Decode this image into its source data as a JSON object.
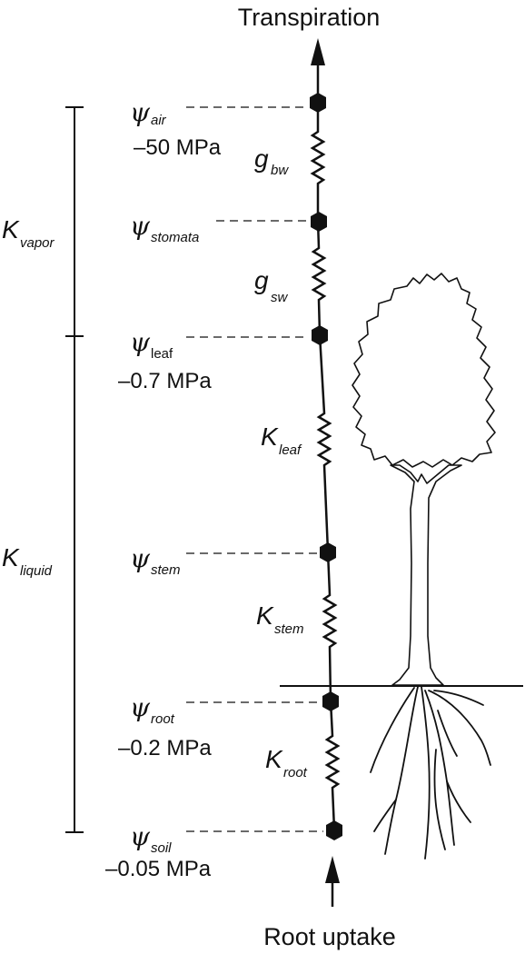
{
  "title_top": "Transpiration",
  "title_bottom": "Root uptake",
  "psi_symbol": "ψ",
  "nodes": {
    "air": {
      "sub": "air",
      "value": "–50 MPa"
    },
    "stomata": {
      "sub": "stomata",
      "value": ""
    },
    "leaf": {
      "sub": "leaf",
      "value": "–0.7 MPa"
    },
    "stem": {
      "sub": "stem",
      "value": ""
    },
    "root": {
      "sub": "root",
      "value": "–0.2 MPa"
    },
    "soil": {
      "sub": "soil",
      "value": "–0.05 MPa"
    }
  },
  "resistors": {
    "bw": {
      "symbol": "g",
      "sub": "bw"
    },
    "sw": {
      "symbol": "g",
      "sub": "sw"
    },
    "leaf": {
      "symbol": "K",
      "sub": "leaf"
    },
    "stem": {
      "symbol": "K",
      "sub": "stem"
    },
    "root": {
      "symbol": "K",
      "sub": "root"
    }
  },
  "brackets": {
    "vapor": {
      "symbol": "K",
      "sub": "vapor"
    },
    "liquid": {
      "symbol": "K",
      "sub": "liquid"
    }
  }
}
